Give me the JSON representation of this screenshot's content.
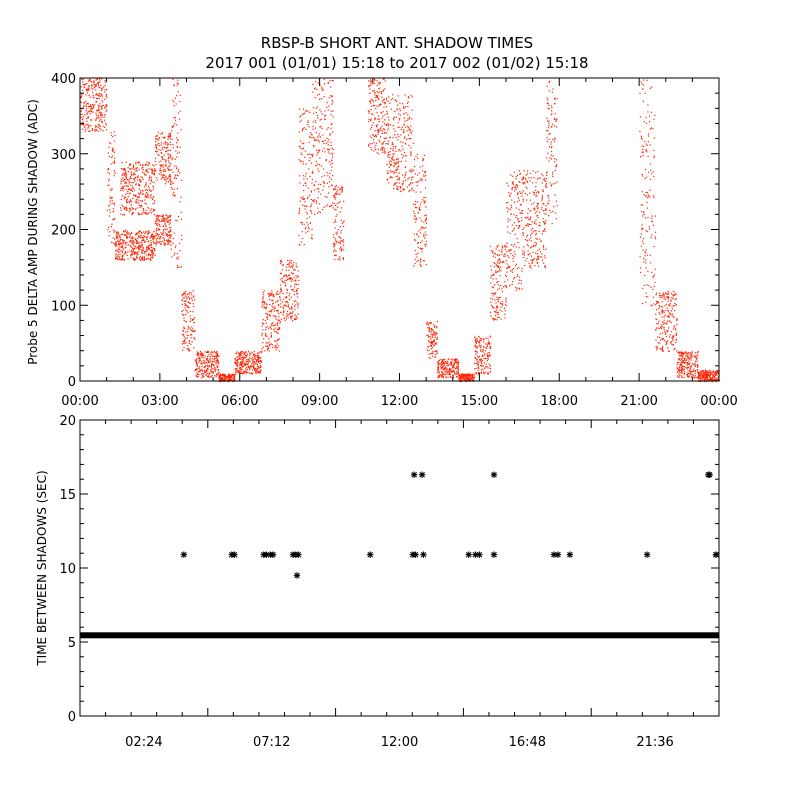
{
  "title_line1": "RBSP-B SHORT ANT. SHADOW TIMES",
  "title_line2": "2017 001 (01/01) 15:18 to 2017 002 (01/02) 15:18",
  "colors": {
    "panel1_points": "#ff2200",
    "panel2_points": "#000000",
    "axes": "#000000"
  },
  "chart_data": [
    {
      "type": "scatter",
      "ylabel": "Probe 5 DELTA AMP DURING SHADOW (ADC)",
      "xlim": [
        0,
        24
      ],
      "ylim": [
        0,
        400
      ],
      "x_ticks": [
        "00:00",
        "03:00",
        "06:00",
        "09:00",
        "12:00",
        "15:00",
        "18:00",
        "21:00",
        "00:00"
      ],
      "y_ticks": [
        "0",
        "100",
        "200",
        "300",
        "400"
      ],
      "x_unit": "hours",
      "point_bands": [
        [
          0.0,
          1.0,
          330,
          400
        ],
        [
          1.0,
          1.3,
          180,
          330
        ],
        [
          1.3,
          2.8,
          160,
          200
        ],
        [
          1.5,
          2.8,
          220,
          290
        ],
        [
          2.8,
          3.4,
          180,
          220
        ],
        [
          2.8,
          3.4,
          260,
          330
        ],
        [
          3.4,
          3.8,
          150,
          400
        ],
        [
          3.8,
          4.3,
          40,
          120
        ],
        [
          4.3,
          5.2,
          5,
          40
        ],
        [
          5.2,
          5.8,
          0,
          10
        ],
        [
          5.8,
          6.8,
          10,
          40
        ],
        [
          6.8,
          7.5,
          40,
          120
        ],
        [
          7.5,
          8.2,
          80,
          160
        ],
        [
          8.2,
          8.7,
          180,
          360
        ],
        [
          8.7,
          9.5,
          220,
          400
        ],
        [
          9.5,
          9.9,
          160,
          260
        ],
        [
          10.8,
          11.5,
          300,
          400
        ],
        [
          11.5,
          12.5,
          250,
          380
        ],
        [
          12.5,
          13.0,
          150,
          300
        ],
        [
          13.0,
          13.4,
          30,
          80
        ],
        [
          13.4,
          14.2,
          5,
          30
        ],
        [
          14.2,
          14.8,
          0,
          10
        ],
        [
          14.8,
          15.4,
          10,
          60
        ],
        [
          15.4,
          16.0,
          80,
          180
        ],
        [
          16.0,
          16.6,
          120,
          280
        ],
        [
          16.6,
          17.5,
          150,
          280
        ],
        [
          17.5,
          17.9,
          200,
          400
        ],
        [
          21.0,
          21.6,
          100,
          400
        ],
        [
          21.6,
          22.4,
          40,
          120
        ],
        [
          22.4,
          23.2,
          5,
          40
        ],
        [
          23.2,
          24.0,
          0,
          15
        ]
      ]
    },
    {
      "type": "scatter",
      "ylabel": "TIME BETWEEN SHADOWS (SEC)",
      "xlim": [
        0,
        24
      ],
      "ylim": [
        0,
        20
      ],
      "x_ticks": [
        "02:24",
        "07:12",
        "12:00",
        "16:48",
        "21:36"
      ],
      "x_tick_hours": [
        2.4,
        7.2,
        12.0,
        16.8,
        21.6
      ],
      "y_ticks": [
        "0",
        "5",
        "10",
        "15",
        "20"
      ],
      "baseline_value": 5.45,
      "points": [
        [
          3.9,
          10.9
        ],
        [
          5.7,
          10.9
        ],
        [
          5.8,
          10.9
        ],
        [
          6.9,
          10.9
        ],
        [
          7.0,
          10.9
        ],
        [
          7.15,
          10.9
        ],
        [
          7.25,
          10.9
        ],
        [
          8.0,
          10.9
        ],
        [
          8.1,
          10.9
        ],
        [
          8.2,
          10.9
        ],
        [
          8.15,
          9.5
        ],
        [
          10.9,
          10.9
        ],
        [
          12.5,
          10.9
        ],
        [
          12.6,
          10.9
        ],
        [
          12.55,
          16.3
        ],
        [
          12.85,
          16.3
        ],
        [
          12.9,
          10.9
        ],
        [
          14.6,
          10.9
        ],
        [
          14.85,
          10.9
        ],
        [
          15.0,
          10.9
        ],
        [
          15.55,
          16.3
        ],
        [
          15.55,
          10.9
        ],
        [
          17.8,
          10.9
        ],
        [
          17.95,
          10.9
        ],
        [
          18.4,
          10.9
        ],
        [
          21.3,
          10.9
        ],
        [
          23.6,
          16.3
        ],
        [
          23.65,
          16.3
        ],
        [
          23.9,
          10.9
        ],
        [
          24.0,
          10.9
        ]
      ]
    }
  ]
}
